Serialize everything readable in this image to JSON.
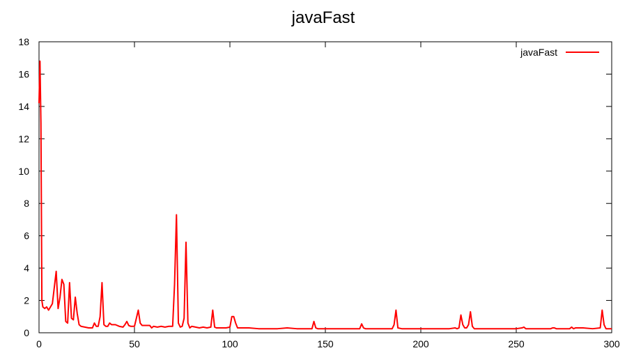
{
  "chart_data": {
    "type": "line",
    "title": "javaFast",
    "xlabel": "",
    "ylabel": "",
    "xlim": [
      0,
      300
    ],
    "ylim": [
      0,
      18
    ],
    "xticks": [
      0,
      50,
      100,
      150,
      200,
      250,
      300
    ],
    "yticks": [
      0,
      2,
      4,
      6,
      8,
      10,
      12,
      14,
      16,
      18
    ],
    "grid": false,
    "legend_position": "top-right",
    "series": [
      {
        "name": "javaFast",
        "color": "#ff0000",
        "x": [
          0,
          0.5,
          1,
          1.5,
          2,
          3,
          4,
          5,
          6,
          7,
          8,
          9,
          10,
          11,
          12,
          13,
          14,
          15,
          16,
          17,
          18,
          19,
          20,
          21,
          22,
          24,
          26,
          28,
          29,
          30,
          31,
          32,
          33,
          34,
          35,
          36,
          37,
          38,
          40,
          42,
          44,
          45,
          46,
          47,
          48,
          50,
          51,
          52,
          53,
          54,
          56,
          58,
          59,
          60,
          62,
          64,
          66,
          68,
          70,
          71,
          72,
          73,
          74,
          75,
          76,
          77,
          78,
          79,
          80,
          82,
          84,
          86,
          88,
          90,
          91,
          92,
          93,
          95,
          98,
          100,
          101,
          102,
          103,
          104,
          106,
          108,
          110,
          115,
          120,
          125,
          130,
          135,
          140,
          143,
          144,
          145,
          146,
          150,
          155,
          160,
          165,
          168,
          169,
          170,
          171,
          175,
          180,
          185,
          186,
          187,
          188,
          190,
          195,
          200,
          205,
          210,
          215,
          218,
          219,
          220,
          221,
          222,
          223,
          224,
          225,
          226,
          227,
          228,
          230,
          235,
          240,
          245,
          250,
          253,
          254,
          255,
          256,
          260,
          265,
          268,
          269,
          270,
          271,
          275,
          278,
          279,
          280,
          281,
          285,
          290,
          294,
          295,
          296,
          297,
          298,
          299,
          300
        ],
        "y": [
          14.2,
          16.8,
          13.0,
          2.0,
          1.6,
          1.5,
          1.6,
          1.4,
          1.6,
          1.8,
          2.8,
          3.8,
          1.5,
          2.2,
          3.3,
          3.0,
          0.7,
          0.6,
          3.1,
          0.9,
          0.8,
          2.2,
          1.2,
          0.5,
          0.4,
          0.35,
          0.3,
          0.3,
          0.6,
          0.4,
          0.4,
          1.0,
          3.1,
          0.5,
          0.4,
          0.4,
          0.6,
          0.5,
          0.5,
          0.4,
          0.35,
          0.5,
          0.7,
          0.45,
          0.4,
          0.4,
          0.9,
          1.4,
          0.6,
          0.45,
          0.45,
          0.45,
          0.3,
          0.4,
          0.35,
          0.4,
          0.35,
          0.4,
          0.4,
          3.0,
          7.3,
          0.6,
          0.35,
          0.4,
          0.9,
          5.6,
          0.6,
          0.3,
          0.4,
          0.35,
          0.3,
          0.35,
          0.3,
          0.35,
          1.4,
          0.35,
          0.3,
          0.3,
          0.3,
          0.35,
          1.0,
          1.0,
          0.6,
          0.3,
          0.3,
          0.3,
          0.3,
          0.25,
          0.25,
          0.25,
          0.3,
          0.25,
          0.25,
          0.25,
          0.7,
          0.3,
          0.25,
          0.25,
          0.25,
          0.25,
          0.25,
          0.25,
          0.55,
          0.3,
          0.25,
          0.25,
          0.25,
          0.25,
          0.5,
          1.4,
          0.3,
          0.25,
          0.25,
          0.25,
          0.25,
          0.25,
          0.25,
          0.3,
          0.25,
          0.3,
          1.1,
          0.5,
          0.3,
          0.3,
          0.5,
          1.3,
          0.4,
          0.25,
          0.25,
          0.25,
          0.25,
          0.25,
          0.25,
          0.3,
          0.35,
          0.25,
          0.25,
          0.25,
          0.25,
          0.25,
          0.3,
          0.3,
          0.25,
          0.25,
          0.25,
          0.35,
          0.25,
          0.3,
          0.3,
          0.25,
          0.3,
          1.4,
          0.5,
          0.25,
          0.25,
          0.25,
          0.25
        ]
      }
    ]
  }
}
